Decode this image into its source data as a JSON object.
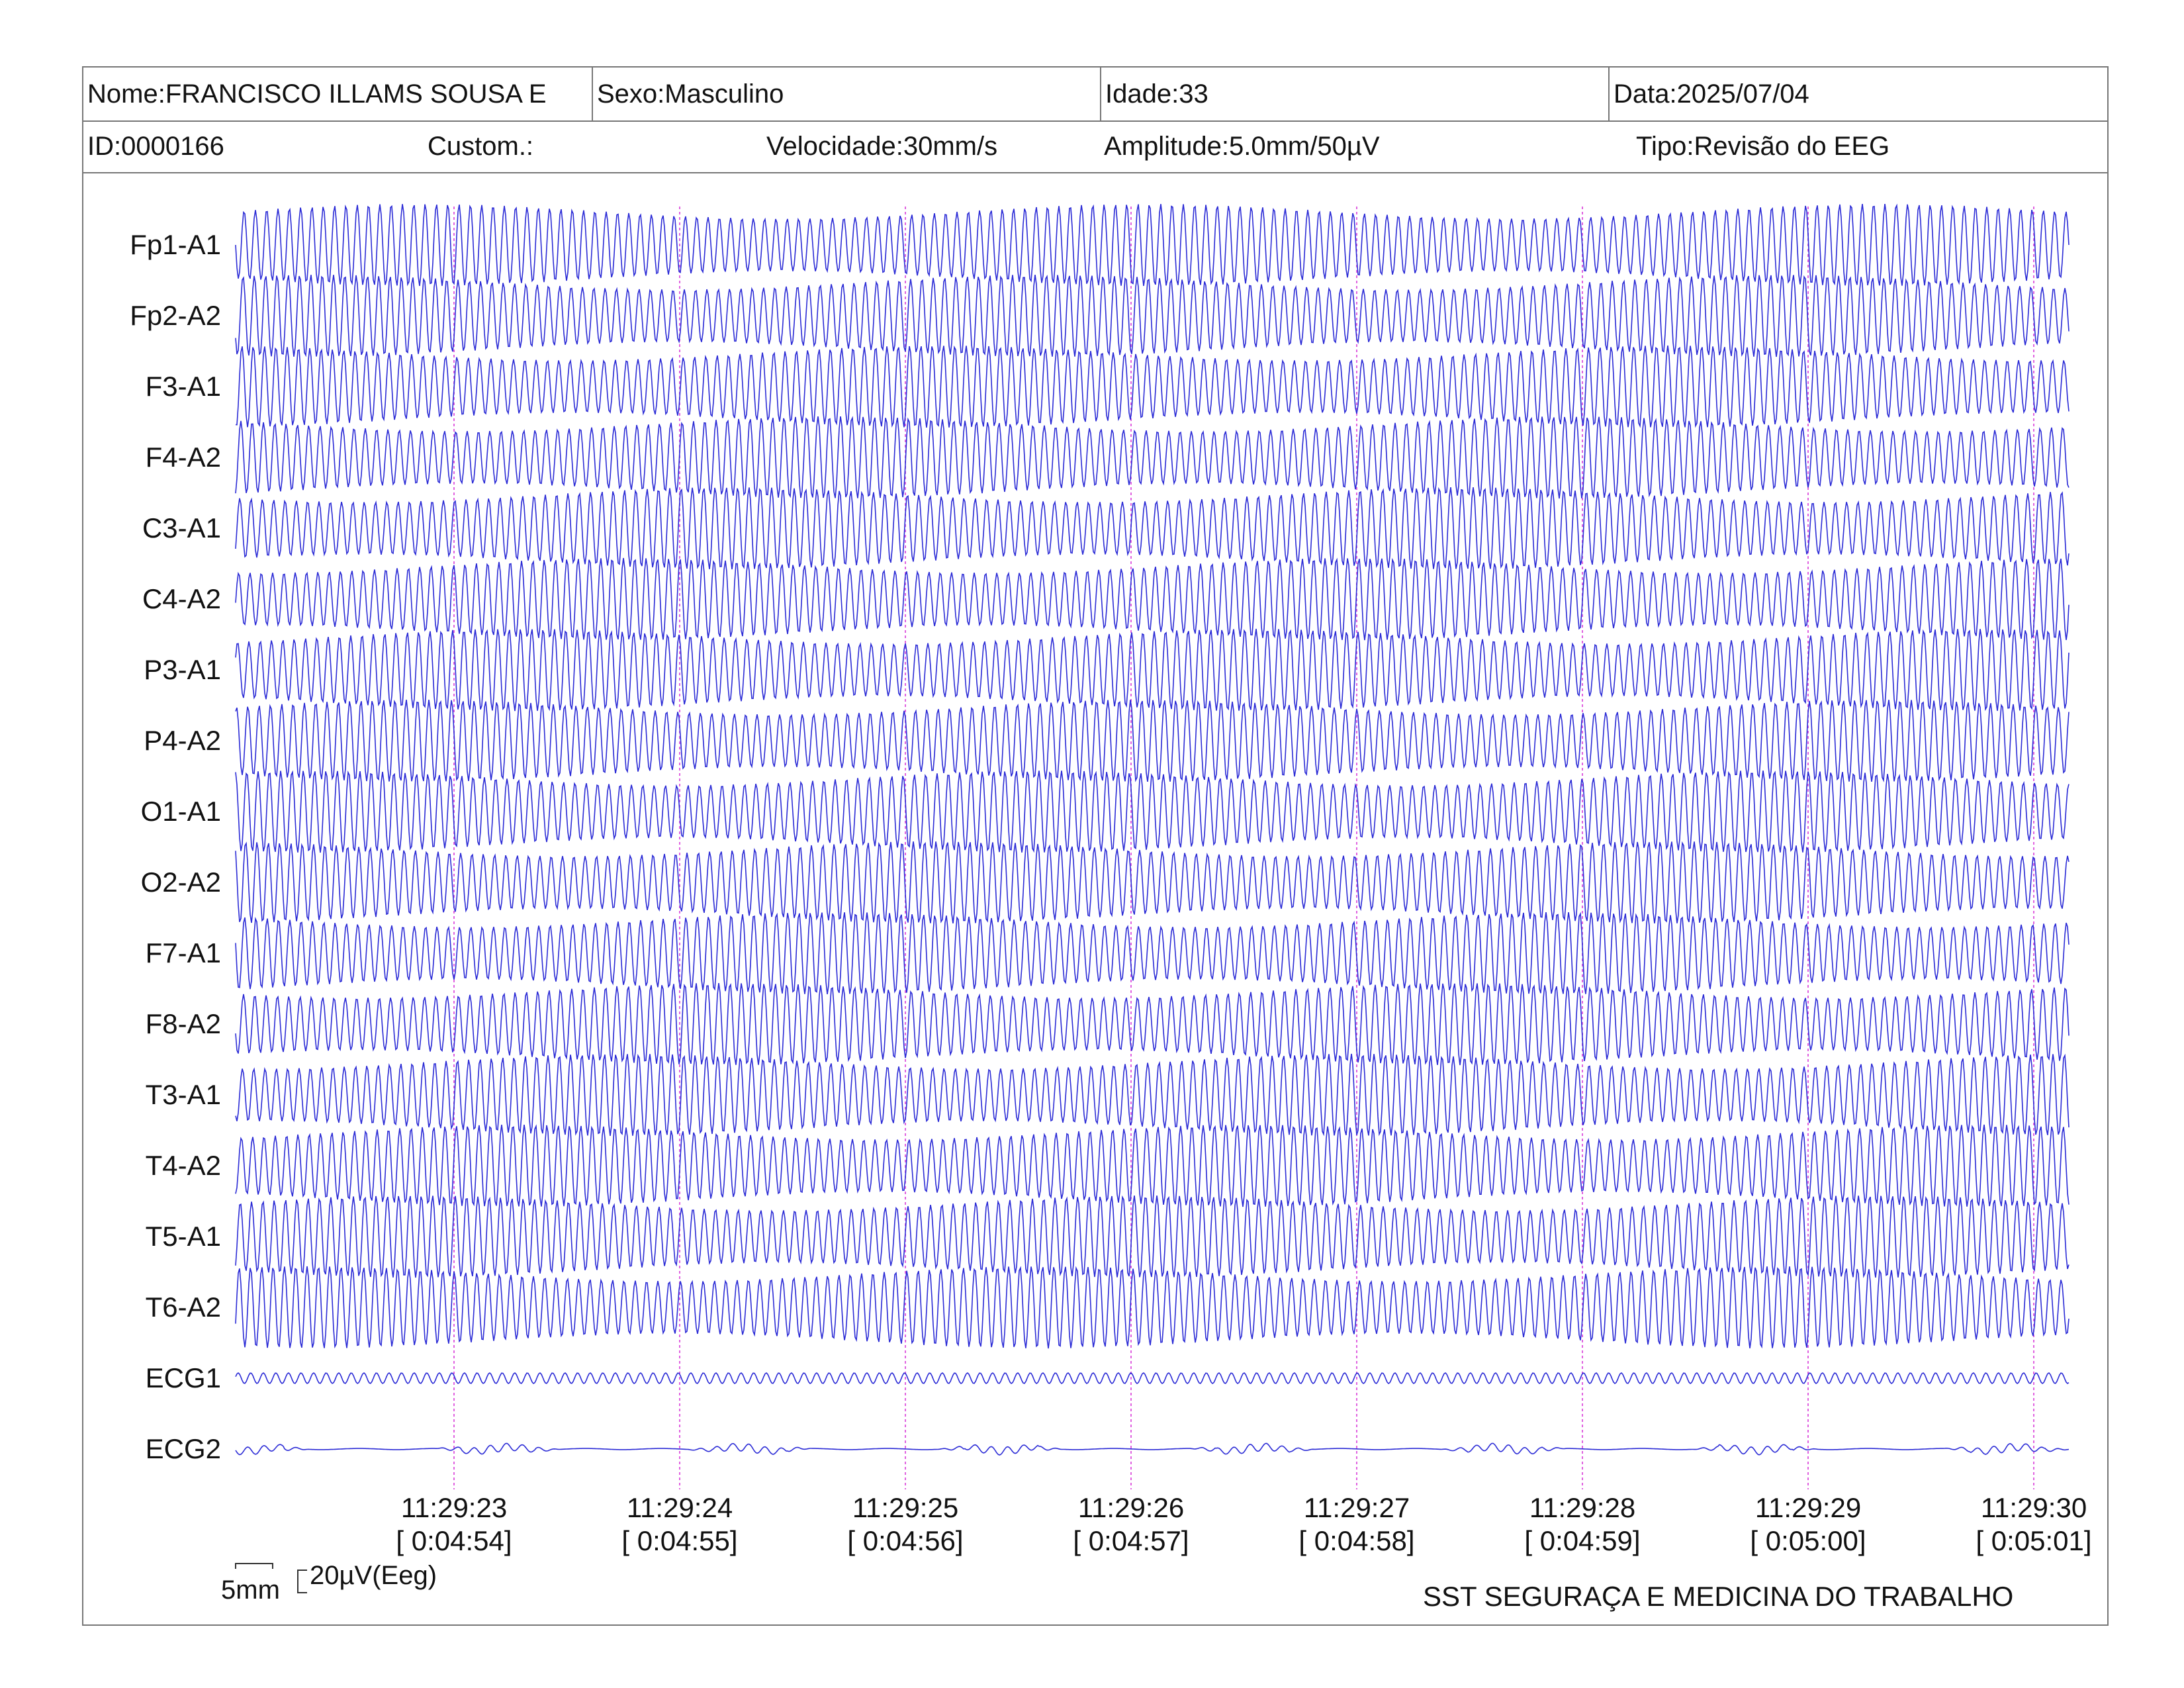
{
  "header": {
    "nome": "Nome:FRANCISCO ILLAMS SOUSA E",
    "sexo": "Sexo:Masculino",
    "idade": "Idade:33",
    "data": "Data:2025/07/04",
    "id": "ID:0000166",
    "custom": "Custom.:",
    "velocidade": "Velocidade:30mm/s",
    "amplitude": "Amplitude:5.0mm/50µV",
    "tipo": "Tipo:Revisão do EEG"
  },
  "chart_data": {
    "type": "line",
    "channels": [
      "Fp1-A1",
      "Fp2-A2",
      "F3-A1",
      "F4-A2",
      "C3-A1",
      "C4-A2",
      "P3-A1",
      "P4-A2",
      "O1-A1",
      "O2-A2",
      "F7-A1",
      "F8-A2",
      "T3-A1",
      "T4-A2",
      "T5-A1",
      "T6-A2",
      "ECG1",
      "ECG2"
    ],
    "time_markers": [
      {
        "clock": "11:29:23",
        "elapsed": "[ 0:04:54]"
      },
      {
        "clock": "11:29:24",
        "elapsed": "[ 0:04:55]"
      },
      {
        "clock": "11:29:25",
        "elapsed": "[ 0:04:56]"
      },
      {
        "clock": "11:29:26",
        "elapsed": "[ 0:04:57]"
      },
      {
        "clock": "11:29:27",
        "elapsed": "[ 0:04:58]"
      },
      {
        "clock": "11:29:28",
        "elapsed": "[ 0:04:59]"
      },
      {
        "clock": "11:29:29",
        "elapsed": "[ 0:05:00]"
      },
      {
        "clock": "11:29:30",
        "elapsed": "[ 0:05:01]"
      }
    ],
    "eeg_dominant_frequency_hz": 20,
    "ecg1_frequency_hz": 18,
    "trace_color": "#2b2bd6",
    "marker_color": "#e060e0"
  },
  "footer": {
    "scale_time": "5mm",
    "scale_amp": "20µV(Eeg)",
    "company": "SST SEGURAÇA E MEDICINA DO TRABALHO"
  }
}
